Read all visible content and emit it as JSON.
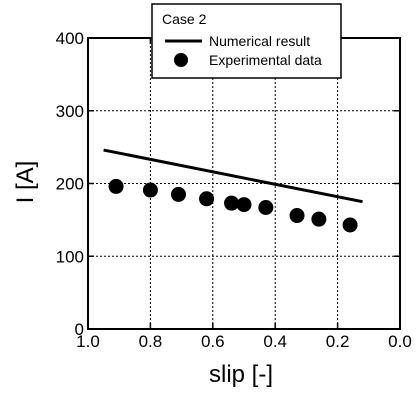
{
  "chart_data": {
    "type": "line",
    "xlabel": "slip [-]",
    "ylabel": "I [A]",
    "xlim": [
      1.0,
      0.0
    ],
    "ylim": [
      0,
      400
    ],
    "x_ticks": [
      "1.0",
      "0.8",
      "0.6",
      "0.4",
      "0.2",
      "0.0"
    ],
    "x_tick_values": [
      1.0,
      0.8,
      0.6,
      0.4,
      0.2,
      0.0
    ],
    "y_ticks": [
      "0",
      "100",
      "200",
      "300",
      "400"
    ],
    "y_tick_values": [
      0,
      100,
      200,
      300,
      400
    ],
    "x_reversed": true,
    "grid": true,
    "legend_position": "top",
    "legend_title": "Case 2",
    "series": [
      {
        "name": "Numerical result",
        "type": "line",
        "color": "#000000",
        "x": [
          0.95,
          0.12
        ],
        "y": [
          246,
          175
        ]
      },
      {
        "name": "Experimental data",
        "type": "scatter",
        "color": "#000000",
        "x": [
          0.91,
          0.8,
          0.71,
          0.62,
          0.54,
          0.5,
          0.43,
          0.33,
          0.26,
          0.16
        ],
        "y": [
          196,
          191,
          185,
          179,
          173,
          171,
          167,
          156,
          151,
          143
        ]
      }
    ]
  }
}
